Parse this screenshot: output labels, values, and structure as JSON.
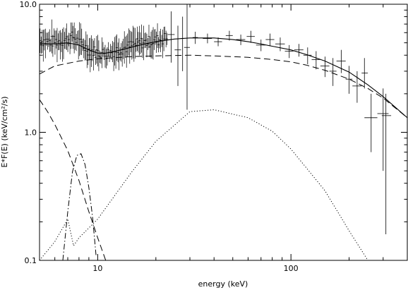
{
  "chart_data": {
    "type": "line",
    "title": "",
    "xlabel": "energy (keV)",
    "ylabel": "E*F(E) (keV/cm²/s)",
    "xscale": "log",
    "yscale": "log",
    "xlim": [
      5,
      400
    ],
    "ylim": [
      0.1,
      10.0
    ],
    "x_ticks": [
      {
        "value": 10,
        "label": "10"
      },
      {
        "value": 100,
        "label": "100"
      }
    ],
    "y_ticks": [
      {
        "value": 0.1,
        "label": "0.1"
      },
      {
        "value": 1.0,
        "label": "1.0"
      },
      {
        "value": 10.0,
        "label": "10.0"
      }
    ],
    "grid": false,
    "legend": "none",
    "series": [
      {
        "style": "solid",
        "x": [
          5,
          6,
          7,
          8,
          9,
          10,
          11,
          12,
          14,
          17,
          20,
          25,
          30,
          40,
          50,
          60,
          70,
          80,
          100,
          120,
          150,
          200,
          250,
          300,
          400
        ],
        "y": [
          4.9,
          4.9,
          5.0,
          4.8,
          4.4,
          4.15,
          4.15,
          4.25,
          4.5,
          4.85,
          5.1,
          5.35,
          5.45,
          5.45,
          5.3,
          5.1,
          4.9,
          4.7,
          4.4,
          4.05,
          3.6,
          2.95,
          2.35,
          1.9,
          1.3
        ]
      },
      {
        "style": "dashed",
        "x": [
          5,
          6,
          8,
          10,
          15,
          20,
          30,
          40,
          60,
          80,
          100,
          120,
          150,
          200,
          250,
          300,
          400
        ],
        "y": [
          2.85,
          3.3,
          3.6,
          3.75,
          3.9,
          3.95,
          4.0,
          3.95,
          3.85,
          3.7,
          3.55,
          3.35,
          3.05,
          2.6,
          2.2,
          1.85,
          1.3
        ]
      },
      {
        "style": "dotted",
        "x": [
          5,
          6,
          7,
          7.5,
          8,
          10,
          15,
          20,
          30,
          40,
          60,
          80,
          100,
          150,
          200,
          250
        ],
        "y": [
          0.1,
          0.14,
          0.21,
          0.13,
          0.15,
          0.21,
          0.49,
          0.85,
          1.45,
          1.5,
          1.3,
          1.02,
          0.74,
          0.35,
          0.17,
          0.1
        ]
      },
      {
        "style": "dashed",
        "x": [
          5,
          5.5,
          6,
          7,
          8,
          9,
          10,
          11
        ],
        "y": [
          1.8,
          1.45,
          1.15,
          0.72,
          0.42,
          0.24,
          0.15,
          0.1
        ]
      },
      {
        "style": "dash-dot",
        "x": [
          6.6,
          7.0,
          7.4,
          7.8,
          8.2,
          8.6,
          9.0,
          9.4,
          9.8
        ],
        "y": [
          0.1,
          0.24,
          0.49,
          0.66,
          0.68,
          0.56,
          0.37,
          0.22,
          0.11
        ]
      }
    ],
    "error_bars": [
      {
        "x": 24,
        "x_lo": 23,
        "x_hi": 25,
        "y": 5.8,
        "y_lo": 3.5,
        "y_hi": 8.8
      },
      {
        "x": 26,
        "x_lo": 25,
        "x_hi": 27,
        "y": 4.4,
        "y_lo": 2.3,
        "y_hi": 6.8
      },
      {
        "x": 27.5,
        "x_lo": 27,
        "x_hi": 28,
        "y": 5.4,
        "y_lo": 3.0,
        "y_hi": 8.0
      },
      {
        "x": 29,
        "x_lo": 28,
        "x_hi": 30,
        "y": 4.6,
        "y_lo": 1.5,
        "y_hi": 10.0
      },
      {
        "x": 32,
        "x_lo": 31,
        "x_hi": 33,
        "y": 5.5,
        "y_lo": 4.9,
        "y_hi": 6.1
      },
      {
        "x": 37,
        "x_lo": 35,
        "x_hi": 39,
        "y": 5.4,
        "y_lo": 4.95,
        "y_hi": 5.9
      },
      {
        "x": 42,
        "x_lo": 40,
        "x_hi": 44,
        "y": 5.1,
        "y_lo": 4.7,
        "y_hi": 5.5
      },
      {
        "x": 48,
        "x_lo": 46,
        "x_hi": 50,
        "y": 5.7,
        "y_lo": 5.2,
        "y_hi": 6.2
      },
      {
        "x": 55,
        "x_lo": 52,
        "x_hi": 58,
        "y": 5.3,
        "y_lo": 4.8,
        "y_hi": 5.8
      },
      {
        "x": 62,
        "x_lo": 59,
        "x_hi": 65,
        "y": 5.6,
        "y_lo": 5.0,
        "y_hi": 6.2
      },
      {
        "x": 70,
        "x_lo": 66,
        "x_hi": 74,
        "y": 4.8,
        "y_lo": 4.3,
        "y_hi": 5.3
      },
      {
        "x": 78,
        "x_lo": 74,
        "x_hi": 82,
        "y": 5.3,
        "y_lo": 4.7,
        "y_hi": 5.9
      },
      {
        "x": 88,
        "x_lo": 83,
        "x_hi": 93,
        "y": 4.9,
        "y_lo": 4.3,
        "y_hi": 5.5
      },
      {
        "x": 98,
        "x_lo": 93,
        "x_hi": 103,
        "y": 4.3,
        "y_lo": 3.8,
        "y_hi": 4.8
      },
      {
        "x": 110,
        "x_lo": 104,
        "x_hi": 116,
        "y": 4.4,
        "y_lo": 3.9,
        "y_hi": 4.9
      },
      {
        "x": 122,
        "x_lo": 116,
        "x_hi": 128,
        "y": 4.0,
        "y_lo": 3.4,
        "y_hi": 4.6
      },
      {
        "x": 135,
        "x_lo": 128,
        "x_hi": 142,
        "y": 3.7,
        "y_lo": 3.1,
        "y_hi": 4.3
      },
      {
        "x": 150,
        "x_lo": 142,
        "x_hi": 158,
        "y": 3.3,
        "y_lo": 2.7,
        "y_hi": 3.9
      },
      {
        "x": 165,
        "x_lo": 158,
        "x_hi": 172,
        "y": 3.0,
        "y_lo": 2.3,
        "y_hi": 3.8
      },
      {
        "x": 182,
        "x_lo": 172,
        "x_hi": 192,
        "y": 3.6,
        "y_lo": 2.9,
        "y_hi": 4.4
      },
      {
        "x": 200,
        "x_lo": 192,
        "x_hi": 208,
        "y": 2.6,
        "y_lo": 2.0,
        "y_hi": 3.3
      },
      {
        "x": 220,
        "x_lo": 208,
        "x_hi": 232,
        "y": 2.3,
        "y_lo": 1.7,
        "y_hi": 3.0
      },
      {
        "x": 240,
        "x_lo": 232,
        "x_hi": 250,
        "y": 2.9,
        "y_lo": 2.2,
        "y_hi": 3.8
      },
      {
        "x": 260,
        "x_lo": 240,
        "x_hi": 280,
        "y": 1.3,
        "y_lo": 0.7,
        "y_hi": 2.0
      },
      {
        "x": 300,
        "x_lo": 280,
        "x_hi": 320,
        "y": 1.4,
        "y_lo": 0.5,
        "y_hi": 2.2
      },
      {
        "x": 310,
        "x_lo": 295,
        "x_hi": 330,
        "y": 1.35,
        "y_lo": 0.16,
        "y_hi": 2.0
      }
    ],
    "noisy_data": {
      "x_start": 5,
      "x_end": 23,
      "count": 120,
      "seed": 7,
      "scatter": 0.045,
      "error_scatter": 0.09,
      "baseline": [
        {
          "x": 5,
          "y": 5.2
        },
        {
          "x": 6,
          "y": 5.1
        },
        {
          "x": 7,
          "y": 5.3
        },
        {
          "x": 7.5,
          "y": 5.6
        },
        {
          "x": 8,
          "y": 5.0
        },
        {
          "x": 9,
          "y": 4.4
        },
        {
          "x": 10,
          "y": 4.2
        },
        {
          "x": 11,
          "y": 4.1
        },
        {
          "x": 12,
          "y": 4.3
        },
        {
          "x": 14,
          "y": 4.6
        },
        {
          "x": 17,
          "y": 5.0
        },
        {
          "x": 20,
          "y": 5.2
        },
        {
          "x": 23,
          "y": 5.5
        }
      ]
    }
  }
}
